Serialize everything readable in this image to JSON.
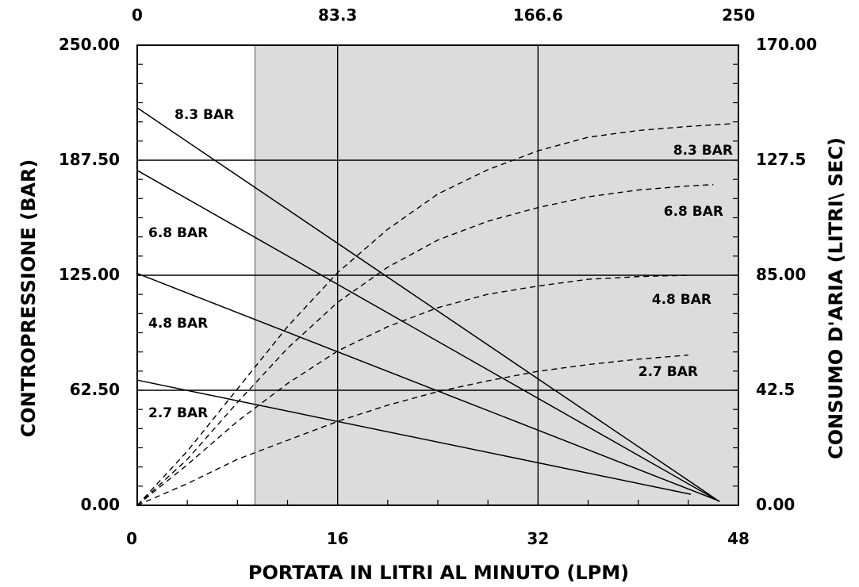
{
  "chart_data": {
    "type": "line",
    "title": "",
    "xlabel": "PORTATA IN LITRI AL MINUTO (LPM)",
    "ylabel_left": "CONTROPRESSIONE (BAR)",
    "ylabel_right": "CONSUMO D'ARIA (LITRI\\ SEC)",
    "x_bottom": {
      "range": [
        0,
        48
      ],
      "ticks": [
        "0",
        "16",
        "32",
        "48"
      ]
    },
    "x_top": {
      "range": [
        0,
        250
      ],
      "ticks": [
        "0",
        "83.3",
        "166.6",
        "250"
      ]
    },
    "y_left": {
      "range": [
        0,
        250
      ],
      "ticks": [
        "0.00",
        "62.50",
        "125.00",
        "187.50",
        "250.00"
      ]
    },
    "y_right": {
      "range": [
        0,
        170
      ],
      "ticks": [
        "0.00",
        "42.5",
        "85.00",
        "127.5",
        "170.00"
      ]
    },
    "shaded_region_x": [
      9.4,
      48
    ],
    "grid": true,
    "pressure_series": [
      {
        "name": "8.3 BAR",
        "points": [
          [
            0,
            216
          ],
          [
            46.5,
            2
          ]
        ]
      },
      {
        "name": "6.8 BAR",
        "points": [
          [
            0,
            182
          ],
          [
            46.5,
            2
          ]
        ]
      },
      {
        "name": "4.8 BAR",
        "points": [
          [
            0,
            126
          ],
          [
            46.2,
            3
          ]
        ]
      },
      {
        "name": "2.7 BAR",
        "points": [
          [
            0,
            68
          ],
          [
            44.2,
            6
          ]
        ]
      }
    ],
    "air_consumption_series": [
      {
        "name": "8.3 BAR",
        "points": [
          [
            0,
            0
          ],
          [
            4,
            20
          ],
          [
            8,
            43
          ],
          [
            12,
            66
          ],
          [
            16,
            86
          ],
          [
            20,
            102
          ],
          [
            24,
            115
          ],
          [
            28,
            124
          ],
          [
            32,
            131
          ],
          [
            36,
            136
          ],
          [
            40,
            138.5
          ],
          [
            44,
            140
          ],
          [
            47.5,
            141
          ]
        ]
      },
      {
        "name": "6.8 BAR",
        "points": [
          [
            0,
            0
          ],
          [
            4,
            17
          ],
          [
            8,
            38
          ],
          [
            12,
            58
          ],
          [
            16,
            75
          ],
          [
            20,
            88
          ],
          [
            24,
            98
          ],
          [
            28,
            105
          ],
          [
            32,
            110
          ],
          [
            36,
            114
          ],
          [
            40,
            116.5
          ],
          [
            44,
            118
          ],
          [
            46,
            118.5
          ]
        ]
      },
      {
        "name": "4.8 BAR",
        "points": [
          [
            0,
            0
          ],
          [
            4,
            15
          ],
          [
            8,
            31
          ],
          [
            12,
            45
          ],
          [
            16,
            57
          ],
          [
            20,
            66
          ],
          [
            24,
            73
          ],
          [
            28,
            78
          ],
          [
            32,
            81
          ],
          [
            36,
            83.5
          ],
          [
            40,
            84.5
          ],
          [
            44,
            85
          ]
        ]
      },
      {
        "name": "2.7 BAR",
        "points": [
          [
            0,
            0
          ],
          [
            4,
            8
          ],
          [
            8,
            17
          ],
          [
            12,
            24
          ],
          [
            16,
            31
          ],
          [
            20,
            37
          ],
          [
            24,
            42
          ],
          [
            28,
            46
          ],
          [
            32,
            49.5
          ],
          [
            36,
            52
          ],
          [
            40,
            54
          ],
          [
            44,
            55.5
          ]
        ]
      }
    ]
  }
}
